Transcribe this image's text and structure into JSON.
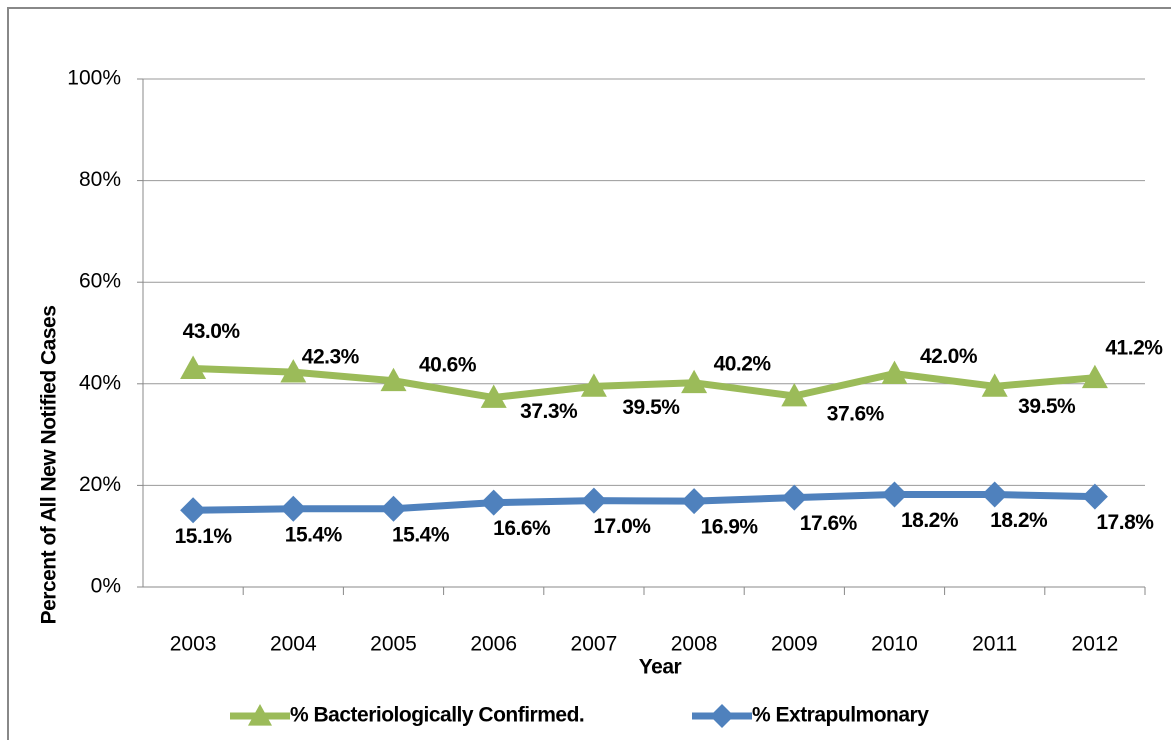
{
  "chart_data": {
    "type": "line",
    "x_label": "Year",
    "y_label": "Percent of All New Notified Cases",
    "categories": [
      "2003",
      "2004",
      "2005",
      "2006",
      "2007",
      "2008",
      "2009",
      "2010",
      "2011",
      "2012"
    ],
    "series": [
      {
        "name": "% Bacteriologically Confirmed.",
        "color": "#9bbb59",
        "marker": "triangle",
        "values": [
          43.0,
          42.3,
          40.6,
          37.3,
          39.5,
          40.2,
          37.6,
          42.0,
          39.5,
          41.2
        ],
        "value_labels": [
          "43.0%",
          "42.3%",
          "40.6%",
          "37.3%",
          "39.5%",
          "40.2%",
          "37.6%",
          "42.0%",
          "39.5%",
          "41.2%"
        ]
      },
      {
        "name": "% Extrapulmonary",
        "color": "#4f81bd",
        "marker": "diamond",
        "values": [
          15.1,
          15.4,
          15.4,
          16.6,
          17.0,
          16.9,
          17.6,
          18.2,
          18.2,
          17.8
        ],
        "value_labels": [
          "15.1%",
          "15.4%",
          "15.4%",
          "16.6%",
          "17.0%",
          "16.9%",
          "17.6%",
          "18.2%",
          "18.2%",
          "17.8%"
        ]
      }
    ],
    "ylim": [
      0,
      100
    ],
    "yticks": [
      {
        "value": 0,
        "label": "0%"
      },
      {
        "value": 20,
        "label": "20%"
      },
      {
        "value": 40,
        "label": "40%"
      },
      {
        "value": 60,
        "label": "60%"
      },
      {
        "value": 80,
        "label": "80%"
      },
      {
        "value": 100,
        "label": "100%"
      }
    ],
    "grid": true,
    "legend": "bottom"
  }
}
